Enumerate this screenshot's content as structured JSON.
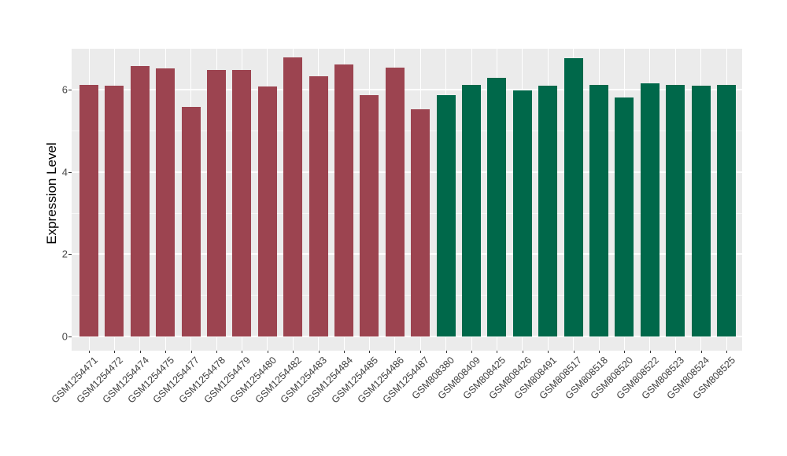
{
  "chart_data": {
    "type": "bar",
    "title": "",
    "xlabel": "",
    "ylabel": "Expression Level",
    "ylim": [
      0,
      7
    ],
    "yticks": [
      0,
      2,
      4,
      6
    ],
    "yminor": [
      1,
      3,
      5
    ],
    "grid": "on",
    "legend": "none",
    "panel_bg": "#EBEBEB",
    "grid_color": "#FFFFFF",
    "group_colors": {
      "groupA": "#9C4450",
      "groupB": "#00684A"
    },
    "bars": [
      {
        "label": "GSM1254471",
        "value": 6.11,
        "group": "groupA"
      },
      {
        "label": "GSM1254472",
        "value": 6.1,
        "group": "groupA"
      },
      {
        "label": "GSM1254474",
        "value": 6.58,
        "group": "groupA"
      },
      {
        "label": "GSM1254475",
        "value": 6.51,
        "group": "groupA"
      },
      {
        "label": "GSM1254477",
        "value": 5.58,
        "group": "groupA"
      },
      {
        "label": "GSM1254478",
        "value": 6.48,
        "group": "groupA"
      },
      {
        "label": "GSM1254479",
        "value": 6.48,
        "group": "groupA"
      },
      {
        "label": "GSM1254480",
        "value": 6.08,
        "group": "groupA"
      },
      {
        "label": "GSM1254482",
        "value": 6.79,
        "group": "groupA"
      },
      {
        "label": "GSM1254483",
        "value": 6.32,
        "group": "groupA"
      },
      {
        "label": "GSM1254484",
        "value": 6.61,
        "group": "groupA"
      },
      {
        "label": "GSM1254485",
        "value": 5.86,
        "group": "groupA"
      },
      {
        "label": "GSM1254486",
        "value": 6.53,
        "group": "groupA"
      },
      {
        "label": "GSM1254487",
        "value": 5.53,
        "group": "groupA"
      },
      {
        "label": "GSM808380",
        "value": 5.86,
        "group": "groupB"
      },
      {
        "label": "GSM808409",
        "value": 6.11,
        "group": "groupB"
      },
      {
        "label": "GSM808425",
        "value": 6.29,
        "group": "groupB"
      },
      {
        "label": "GSM808426",
        "value": 5.99,
        "group": "groupB"
      },
      {
        "label": "GSM808491",
        "value": 6.09,
        "group": "groupB"
      },
      {
        "label": "GSM808517",
        "value": 6.77,
        "group": "groupB"
      },
      {
        "label": "GSM808518",
        "value": 6.12,
        "group": "groupB"
      },
      {
        "label": "GSM808520",
        "value": 5.8,
        "group": "groupB"
      },
      {
        "label": "GSM808522",
        "value": 6.16,
        "group": "groupB"
      },
      {
        "label": "GSM808523",
        "value": 6.11,
        "group": "groupB"
      },
      {
        "label": "GSM808524",
        "value": 6.09,
        "group": "groupB"
      },
      {
        "label": "GSM808525",
        "value": 6.12,
        "group": "groupB"
      }
    ]
  }
}
